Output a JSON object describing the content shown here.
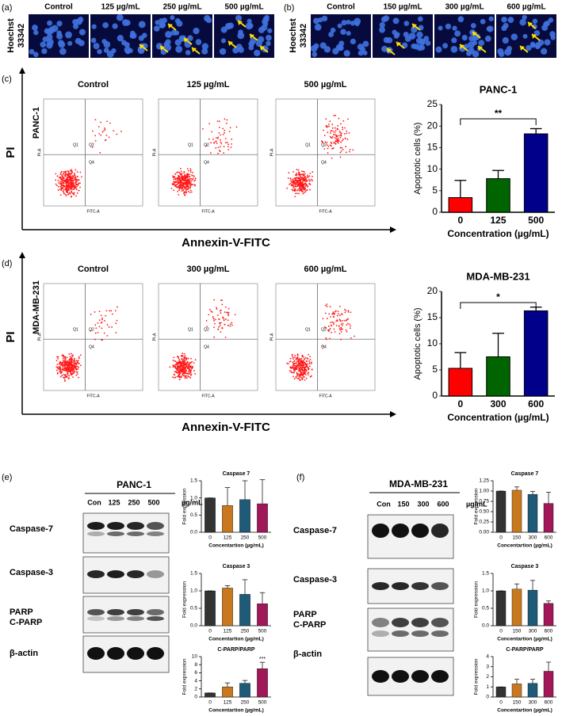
{
  "panels": {
    "a": {
      "label": "(a)",
      "stain": [
        "Hoechst",
        "33342"
      ],
      "images": [
        "Control",
        "125 µg/mL",
        "250 µg/mL",
        "500 µg/mL"
      ]
    },
    "b": {
      "label": "(b)",
      "stain": [
        "Hoechst",
        "33342"
      ],
      "images": [
        "Control",
        "150 µg/mL",
        "300 µg/mL",
        "600 µg/mL"
      ]
    },
    "c": {
      "label": "(c)",
      "cell_line": "PANC-1",
      "y_axis": "PI",
      "x_axis": "Annexin-V-FITC",
      "plots": [
        "Control",
        "125 µg/mL",
        "500 µg/mL"
      ]
    },
    "d": {
      "label": "(d)",
      "cell_line": "MDA-MB-231",
      "y_axis": "PI",
      "x_axis": "Annexin-V-FITC",
      "plots": [
        "Control",
        "300 µg/mL",
        "600 µg/mL"
      ]
    },
    "e": {
      "label": "(e)",
      "cell_line": "PANC-1",
      "lanes": [
        "Con",
        "125",
        "250",
        "500"
      ],
      "unit": "µg/mL",
      "proteins": [
        "Caspase-7",
        "Caspase-3",
        "PARP",
        "C-PARP",
        "β-actin"
      ]
    },
    "f": {
      "label": "(f)",
      "cell_line": "MDA-MB-231",
      "lanes": [
        "Con",
        "150",
        "300",
        "600"
      ],
      "unit": "µg/mL",
      "proteins": [
        "Caspase-7",
        "Caspase-3",
        "PARP",
        "C-PARP",
        "β-actin"
      ]
    }
  },
  "flow_plot_labels": {
    "quadrants": [
      "Q1",
      "Q2",
      "Q4"
    ],
    "x": "FITC-A",
    "y": "PI-A"
  },
  "chart_data": [
    {
      "type": "bar",
      "title": "PANC-1",
      "categories": [
        "0",
        "125",
        "500"
      ],
      "values": [
        3.4,
        7.8,
        18.2
      ],
      "errors": [
        4.0,
        1.9,
        1.2
      ],
      "colors": [
        "#ff0000",
        "#006400",
        "#00008b"
      ],
      "ylim": [
        0,
        25
      ],
      "yticks": [
        0,
        5,
        10,
        15,
        20,
        25
      ],
      "ylabel": "Apoptotic cells (%)",
      "xlabel": "Concentration (µg/mL)",
      "annotation": "**"
    },
    {
      "type": "bar",
      "title": "MDA-MB-231",
      "categories": [
        "0",
        "300",
        "600"
      ],
      "values": [
        5.3,
        7.5,
        16.3
      ],
      "errors": [
        3.0,
        4.5,
        0.7
      ],
      "colors": [
        "#ff0000",
        "#006400",
        "#00008b"
      ],
      "ylim": [
        0,
        20
      ],
      "yticks": [
        0,
        5,
        10,
        15,
        20
      ],
      "ylabel": "Apoptotic cells (%)",
      "xlabel": "Concentration (µg/mL)",
      "annotation": "*"
    },
    {
      "type": "bar",
      "title": "Caspase 7",
      "categories": [
        "0",
        "125",
        "250",
        "500"
      ],
      "values": [
        1.0,
        0.78,
        0.95,
        0.83
      ],
      "errors": [
        0,
        0.52,
        0.55,
        0.7
      ],
      "colors": [
        "#333333",
        "#c8781e",
        "#1f5a78",
        "#a01858"
      ],
      "ylim": [
        0,
        1.5
      ],
      "yticks": [
        {
          "value": 0,
          "label": "0.0"
        },
        {
          "value": 0.5,
          "label": "0.5"
        },
        {
          "value": 1,
          "label": "1.0"
        },
        {
          "value": 1.5,
          "label": "1.5"
        }
      ],
      "ylabel": "Fold expression",
      "xlabel": "Concentartion (µg/mL)"
    },
    {
      "type": "bar",
      "title": "Caspase 3",
      "categories": [
        "0",
        "125",
        "250",
        "500"
      ],
      "values": [
        1.0,
        1.08,
        0.9,
        0.63
      ],
      "errors": [
        0,
        0.07,
        0.42,
        0.32
      ],
      "colors": [
        "#333333",
        "#c8781e",
        "#1f5a78",
        "#a01858"
      ],
      "ylim": [
        0,
        1.5
      ],
      "yticks": [
        {
          "value": 0,
          "label": "0.0"
        },
        {
          "value": 0.5,
          "label": "0.5"
        },
        {
          "value": 1,
          "label": "1.0"
        },
        {
          "value": 1.5,
          "label": "1.5"
        }
      ],
      "ylabel": "Fold expression",
      "xlabel": "Concentartion (µg/mL)"
    },
    {
      "type": "bar",
      "title": "C-PARP/PARP",
      "categories": [
        "0",
        "125",
        "250",
        "500"
      ],
      "values": [
        1.0,
        2.5,
        3.4,
        7.0
      ],
      "errors": [
        0,
        1.0,
        0.7,
        1.6
      ],
      "colors": [
        "#333333",
        "#c8781e",
        "#1f5a78",
        "#a01858"
      ],
      "ylim": [
        0,
        10
      ],
      "yticks": [
        0,
        2,
        4,
        6,
        8,
        10
      ],
      "ylabel": "Fold expression",
      "xlabel": "Concentartion (µg/mL)",
      "annotation": "***"
    },
    {
      "type": "bar",
      "title": "Caspase 7",
      "categories": [
        "0",
        "150",
        "300",
        "600"
      ],
      "values": [
        1.0,
        1.02,
        0.92,
        0.7
      ],
      "errors": [
        0,
        0.08,
        0.07,
        0.27
      ],
      "colors": [
        "#333333",
        "#c8781e",
        "#1f5a78",
        "#a01858"
      ],
      "ylim": [
        0,
        1.25
      ],
      "yticks": [
        {
          "value": 0,
          "label": "0.00"
        },
        {
          "value": 0.25,
          "label": "0.25"
        },
        {
          "value": 0.5,
          "label": "0.50"
        },
        {
          "value": 0.75,
          "label": "0.75"
        },
        {
          "value": 1,
          "label": "1.00"
        },
        {
          "value": 1.25,
          "label": "1.25"
        }
      ],
      "ylabel": "Fold expression",
      "xlabel": "Concentartion (µg/mL)"
    },
    {
      "type": "bar",
      "title": "Caspase 3",
      "categories": [
        "0",
        "150",
        "300",
        "600"
      ],
      "values": [
        1.0,
        1.05,
        1.02,
        0.64
      ],
      "errors": [
        0,
        0.15,
        0.28,
        0.07
      ],
      "colors": [
        "#333333",
        "#c8781e",
        "#1f5a78",
        "#a01858"
      ],
      "ylim": [
        0,
        1.5
      ],
      "yticks": [
        {
          "value": 0,
          "label": "0.0"
        },
        {
          "value": 0.5,
          "label": "0.5"
        },
        {
          "value": 1,
          "label": "1.0"
        },
        {
          "value": 1.5,
          "label": "1.5"
        }
      ],
      "ylabel": "Fold expression",
      "xlabel": "Concentartion (µg/mL)"
    },
    {
      "type": "bar",
      "title": "C-PARP/PARP",
      "categories": [
        "0",
        "150",
        "300",
        "600"
      ],
      "values": [
        1.0,
        1.3,
        1.35,
        2.55
      ],
      "errors": [
        0,
        0.45,
        0.4,
        0.9
      ],
      "colors": [
        "#333333",
        "#c8781e",
        "#1f5a78",
        "#a01858"
      ],
      "ylim": [
        0,
        4
      ],
      "yticks": [
        0,
        1,
        2,
        3,
        4
      ],
      "ylabel": "Fold expression",
      "xlabel": "Concentartion (µg/mL)"
    }
  ]
}
